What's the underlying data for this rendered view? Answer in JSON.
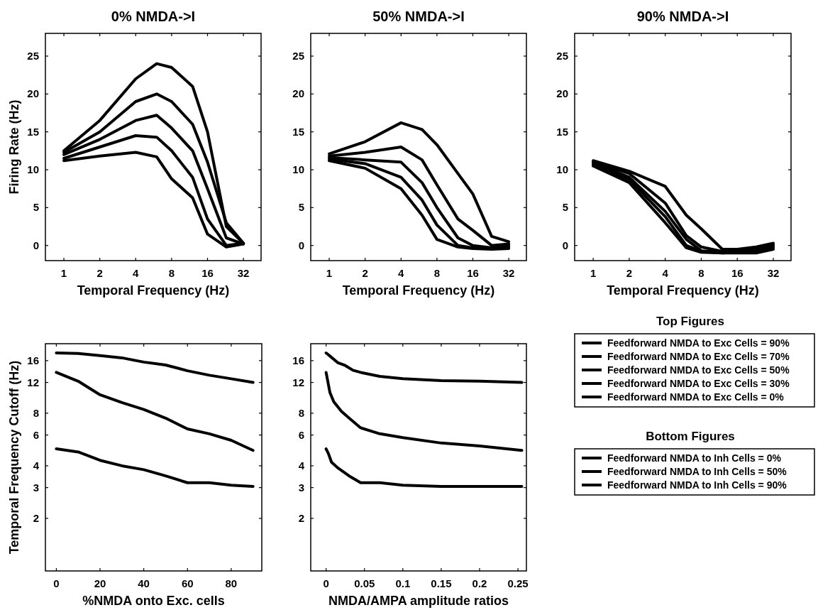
{
  "chart_data": [
    {
      "type": "line",
      "title": "0% NMDA->I",
      "xlabel": "Temporal Frequency (Hz)",
      "ylabel": "Firing Rate (Hz)",
      "log": "x",
      "xlim": [
        0.7,
        45
      ],
      "xticks": [
        1,
        2,
        4,
        8,
        16,
        32
      ],
      "ylim": [
        -2,
        28
      ],
      "yticks": [
        0,
        5,
        10,
        15,
        20,
        25
      ],
      "x": [
        1,
        2,
        4,
        6,
        8,
        12,
        16,
        23,
        32
      ],
      "series": [
        {
          "color": "#000000",
          "values": [
            12.5,
            16.5,
            22,
            24,
            23.5,
            21,
            15,
            2.5,
            0.3
          ]
        },
        {
          "color": "#000000",
          "values": [
            12.3,
            15,
            19,
            20,
            19,
            16,
            11,
            3,
            0.3
          ]
        },
        {
          "color": "#000000",
          "values": [
            12,
            14,
            16.5,
            17.2,
            15.5,
            12.5,
            7.5,
            1,
            0.2
          ]
        },
        {
          "color": "#000000",
          "values": [
            11.5,
            13,
            14.5,
            14.3,
            12.5,
            9,
            3.5,
            0,
            0.3
          ]
        },
        {
          "color": "#000000",
          "values": [
            11.2,
            11.8,
            12.3,
            11.7,
            8.8,
            6.3,
            1.5,
            -0.2,
            0.2
          ]
        }
      ]
    },
    {
      "type": "line",
      "title": "50% NMDA->I",
      "xlabel": "Temporal Frequency (Hz)",
      "log": "x",
      "xlim": [
        0.7,
        45
      ],
      "xticks": [
        1,
        2,
        4,
        8,
        16,
        32
      ],
      "ylim": [
        -2,
        28
      ],
      "yticks": [
        0,
        5,
        10,
        15,
        20,
        25
      ],
      "x": [
        1,
        2,
        4,
        6,
        8,
        12,
        16,
        23,
        32
      ],
      "series": [
        {
          "color": "#000000",
          "values": [
            12.1,
            13.7,
            16.2,
            15.3,
            13.3,
            9.5,
            6.8,
            1.2,
            0.5
          ]
        },
        {
          "color": "#000000",
          "values": [
            11.8,
            12.3,
            13,
            11.3,
            8,
            3.5,
            2,
            0,
            0.2
          ]
        },
        {
          "color": "#000000",
          "values": [
            11.6,
            11.3,
            11,
            8.3,
            5,
            1,
            0,
            -0.3,
            0
          ]
        },
        {
          "color": "#000000",
          "values": [
            11.4,
            10.8,
            9,
            6,
            2.7,
            0,
            -0.3,
            -0.4,
            -0.2
          ]
        },
        {
          "color": "#000000",
          "values": [
            11.2,
            10.2,
            7.5,
            4,
            0.8,
            -0.2,
            -0.4,
            -0.5,
            -0.4
          ]
        }
      ]
    },
    {
      "type": "line",
      "title": "90% NMDA->I",
      "xlabel": "Temporal Frequency (Hz)",
      "log": "x",
      "xlim": [
        0.7,
        45
      ],
      "xticks": [
        1,
        2,
        4,
        8,
        16,
        32
      ],
      "ylim": [
        -2,
        28
      ],
      "yticks": [
        0,
        5,
        10,
        15,
        20,
        25
      ],
      "x": [
        1,
        2,
        4,
        6,
        8,
        12,
        16,
        23,
        32
      ],
      "legend": "bottom",
      "legend_title": "Top Figures",
      "series": [
        {
          "name": "Feedforward NMDA to Exc Cells = 90%",
          "color": "#000000",
          "values": [
            11.2,
            9.8,
            7.8,
            4,
            2.2,
            -0.5,
            -0.5,
            -0.2,
            0.3
          ]
        },
        {
          "name": "Feedforward NMDA to Exc Cells = 70%",
          "color": "#000000",
          "values": [
            11,
            9.5,
            5.6,
            1.3,
            -0.2,
            -0.8,
            -0.8,
            -0.5,
            0.1
          ]
        },
        {
          "name": "Feedforward NMDA to Exc Cells = 50%",
          "color": "#000000",
          "values": [
            10.9,
            9,
            4.5,
            0.8,
            -0.7,
            -0.9,
            -0.8,
            -0.6,
            -0.1
          ]
        },
        {
          "name": "Feedforward NMDA to Exc Cells = 30%",
          "color": "#000000",
          "values": [
            10.7,
            8.7,
            3.8,
            0,
            -0.8,
            -1,
            -0.9,
            -0.8,
            -0.3
          ]
        },
        {
          "name": "Feedforward NMDA to Exc Cells = 0%",
          "color": "#000000",
          "values": [
            10.5,
            8.3,
            3,
            -0.3,
            -0.9,
            -1,
            -1,
            -1,
            -0.5
          ]
        }
      ]
    },
    {
      "type": "line",
      "xlabel": "%NMDA onto Exc. cells",
      "ylabel": "Temporal Frequency Cutoff (Hz)",
      "log": "y",
      "xlim": [
        -5,
        94
      ],
      "xticks": [
        0,
        20,
        40,
        60,
        80
      ],
      "ylim": [
        1,
        20
      ],
      "yticks": [
        2,
        3,
        4,
        6,
        8,
        12,
        16
      ],
      "x": [
        0,
        10,
        20,
        30,
        40,
        50,
        60,
        70,
        80,
        90
      ],
      "series": [
        {
          "color": "#000000",
          "values": [
            17.7,
            17.6,
            17.1,
            16.6,
            15.7,
            15.1,
            14,
            13.2,
            12.6,
            12
          ]
        },
        {
          "color": "#000000",
          "values": [
            13.7,
            12.2,
            10.2,
            9.2,
            8.4,
            7.5,
            6.5,
            6.1,
            5.6,
            4.9
          ]
        },
        {
          "color": "#000000",
          "values": [
            5,
            4.8,
            4.3,
            4,
            3.8,
            3.5,
            3.2,
            3.2,
            3.1,
            3.05
          ]
        }
      ]
    },
    {
      "type": "line",
      "xlabel": "NMDA/AMPA amplitude ratios",
      "log": "y",
      "xlim": [
        -0.02,
        0.261
      ],
      "xticks": [
        0,
        0.05,
        0.1,
        0.15,
        0.2,
        0.25
      ],
      "ylim": [
        1,
        20
      ],
      "yticks": [
        2,
        3,
        4,
        6,
        8,
        12,
        16
      ],
      "legend": "right",
      "legend_title": "Bottom Figures",
      "series": [
        {
          "name": "Feedforward NMDA to Inh Cells = 0%",
          "color": "#000000",
          "x": [
            0,
            0.005,
            0.015,
            0.025,
            0.035,
            0.045,
            0.07,
            0.1,
            0.15,
            0.2,
            0.255
          ],
          "values": [
            17.7,
            17,
            15.6,
            15,
            14.1,
            13.7,
            13,
            12.6,
            12.3,
            12.2,
            12
          ]
        },
        {
          "name": "Feedforward NMDA to Inh Cells = 50%",
          "color": "#000000",
          "x": [
            0,
            0.005,
            0.01,
            0.02,
            0.03,
            0.045,
            0.07,
            0.1,
            0.15,
            0.2,
            0.255
          ],
          "values": [
            13.7,
            10.5,
            9.3,
            8.2,
            7.5,
            6.6,
            6.1,
            5.8,
            5.4,
            5.2,
            4.9
          ]
        },
        {
          "name": "Feedforward NMDA to Inh Cells = 90%",
          "color": "#000000",
          "x": [
            0,
            0.003,
            0.007,
            0.015,
            0.03,
            0.045,
            0.07,
            0.1,
            0.15,
            0.255
          ],
          "values": [
            5,
            4.7,
            4.2,
            3.9,
            3.5,
            3.2,
            3.2,
            3.1,
            3.05,
            3.05
          ]
        }
      ]
    }
  ]
}
